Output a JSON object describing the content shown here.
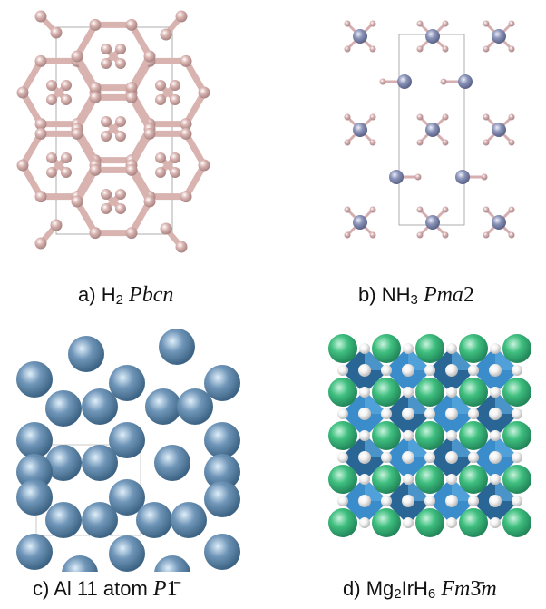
{
  "panels": [
    {
      "letter": "a)",
      "formula": "H",
      "formula_sub": "2",
      "formula_rest": "",
      "space_group": "Pbcn",
      "sg_tail": ""
    },
    {
      "letter": "b)",
      "formula": "NH",
      "formula_sub": "3",
      "formula_rest": "",
      "space_group": "Pma",
      "sg_tail": "2"
    },
    {
      "letter": "c)",
      "formula": "Al 11 atom",
      "formula_sub": "",
      "formula_rest": "",
      "space_group": "P",
      "sg_tail": "1̄"
    },
    {
      "letter": "d)",
      "formula": "Mg",
      "formula_sub": "2",
      "formula_rest": "IrH",
      "formula_sub2": "6",
      "space_group": "Fm",
      "sg_tail": "3̄",
      "sg_tail2": "m"
    }
  ],
  "colors": {
    "hydrogen": "#d9b3b0",
    "hydrogen_dark": "#a88583",
    "nitrogen": "#8a93b8",
    "nitrogen_h": "#d6aeb0",
    "aluminum": "#6f95b8",
    "aluminum_light": "#dfeffa",
    "magnesium": "#3fbf7f",
    "iridium_poly": "#2f86c8",
    "iridium_poly_dark": "#1d5e8f",
    "hydride": "#f4f4f4"
  }
}
